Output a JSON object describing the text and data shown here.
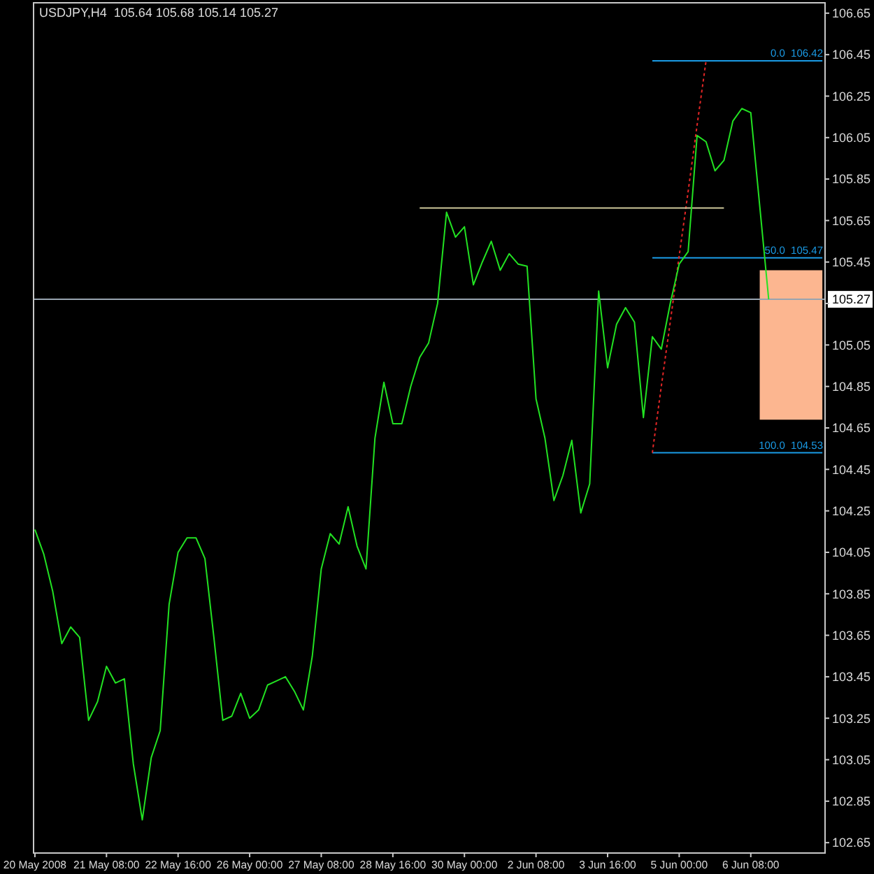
{
  "chart_data": {
    "type": "line",
    "title": "USDJPY,H4  105.64 105.68 105.14 105.27",
    "categories": [
      "20 May 2008",
      null,
      null,
      null,
      null,
      null,
      null,
      null,
      "21 May 08:00",
      null,
      null,
      null,
      null,
      null,
      null,
      null,
      "22 May 16:00",
      null,
      null,
      null,
      null,
      null,
      null,
      null,
      "26 May 00:00",
      null,
      null,
      null,
      null,
      null,
      null,
      null,
      "27 May 08:00",
      null,
      null,
      null,
      null,
      null,
      null,
      null,
      "28 May 16:00",
      null,
      null,
      null,
      null,
      null,
      null,
      null,
      "30 May 00:00",
      null,
      null,
      null,
      null,
      null,
      null,
      null,
      "2 Jun 08:00",
      null,
      null,
      null,
      null,
      null,
      null,
      null,
      "3 Jun 16:00",
      null,
      null,
      null,
      null,
      null,
      null,
      null,
      "5 Jun 00:00",
      null,
      null,
      null,
      null,
      null,
      null,
      null,
      "6 Jun 08:00",
      null,
      null,
      null,
      null,
      null,
      null,
      null,
      null
    ],
    "series": [
      {
        "color": "#22e222",
        "values": [
          104.16,
          104.04,
          103.86,
          103.61,
          103.69,
          103.64,
          103.24,
          103.33,
          103.5,
          103.42,
          103.44,
          103.03,
          102.76,
          103.06,
          103.19,
          103.8,
          104.05,
          104.12,
          104.12,
          104.02,
          103.64,
          103.24,
          103.26,
          103.37,
          103.25,
          103.29,
          103.41,
          103.43,
          103.45,
          103.38,
          103.29,
          103.55,
          103.97,
          104.14,
          104.09,
          104.27,
          104.08,
          103.97,
          104.6,
          104.87,
          104.67,
          104.67,
          104.85,
          104.99,
          105.06,
          105.25,
          105.69,
          105.57,
          105.62,
          105.34,
          105.45,
          105.55,
          105.41,
          105.49,
          105.44,
          105.43,
          104.79,
          104.6,
          104.3,
          104.42,
          104.59,
          104.24,
          104.38,
          105.31,
          104.94,
          105.15,
          105.23,
          105.16,
          104.7,
          105.09,
          105.03,
          105.25,
          105.44,
          105.5,
          106.06,
          106.03,
          105.89,
          105.94,
          106.13,
          106.19,
          106.17,
          105.72,
          105.27,
          null,
          null,
          null,
          null,
          null,
          null
        ]
      },
      {
        "type": "line",
        "color": "#cdc79a",
        "values": [
          null,
          null,
          null,
          null,
          null,
          null,
          null,
          null,
          null,
          null,
          null,
          null,
          null,
          null,
          null,
          null,
          null,
          null,
          null,
          null,
          null,
          null,
          null,
          null,
          null,
          null,
          null,
          null,
          null,
          null,
          null,
          null,
          null,
          null,
          null,
          null,
          null,
          null,
          null,
          null,
          null,
          null,
          null,
          105.71,
          105.71,
          105.71,
          105.71,
          105.71,
          105.71,
          105.71,
          105.71,
          105.71,
          105.71,
          105.71,
          105.71,
          105.71,
          105.71,
          105.71,
          105.71,
          105.71,
          105.71,
          105.71,
          105.71,
          105.71,
          105.71,
          105.71,
          105.71,
          105.71,
          105.71,
          105.71,
          105.71,
          105.71,
          105.71,
          105.71,
          105.71,
          105.71,
          105.71,
          105.71,
          null,
          null,
          null,
          null,
          null,
          null,
          null,
          null,
          null,
          null,
          null
        ]
      },
      {
        "type": "line",
        "color": "#e32626",
        "line_style": "dotted",
        "values": [
          null,
          null,
          null,
          null,
          null,
          null,
          null,
          null,
          null,
          null,
          null,
          null,
          null,
          null,
          null,
          null,
          null,
          null,
          null,
          null,
          null,
          null,
          null,
          null,
          null,
          null,
          null,
          null,
          null,
          null,
          null,
          null,
          null,
          null,
          null,
          null,
          null,
          null,
          null,
          null,
          null,
          null,
          null,
          null,
          null,
          null,
          null,
          null,
          null,
          null,
          null,
          null,
          null,
          null,
          null,
          null,
          null,
          null,
          null,
          null,
          null,
          null,
          null,
          null,
          null,
          null,
          null,
          null,
          null,
          104.53,
          104.85,
          105.16,
          105.48,
          105.79,
          106.11,
          106.42,
          null,
          null,
          null,
          null,
          null,
          null,
          null,
          null,
          null,
          null,
          null,
          null,
          null
        ]
      },
      {
        "type": "line",
        "name": "0.0  106.42",
        "color": "#1a9be6",
        "values": [
          null,
          null,
          null,
          null,
          null,
          null,
          null,
          null,
          null,
          null,
          null,
          null,
          null,
          null,
          null,
          null,
          null,
          null,
          null,
          null,
          null,
          null,
          null,
          null,
          null,
          null,
          null,
          null,
          null,
          null,
          null,
          null,
          null,
          null,
          null,
          null,
          null,
          null,
          null,
          null,
          null,
          null,
          null,
          null,
          null,
          null,
          null,
          null,
          null,
          null,
          null,
          null,
          null,
          null,
          null,
          null,
          null,
          null,
          null,
          null,
          null,
          null,
          null,
          null,
          null,
          null,
          null,
          null,
          null,
          106.42,
          106.42,
          106.42,
          106.42,
          106.42,
          106.42,
          106.42,
          106.42,
          106.42,
          106.42,
          106.42,
          106.42,
          106.42,
          106.42,
          106.42,
          106.42,
          106.42,
          106.42,
          106.42,
          106.42
        ]
      },
      {
        "type": "line",
        "name": "50.0  105.47",
        "color": "#1a9be6",
        "values": [
          null,
          null,
          null,
          null,
          null,
          null,
          null,
          null,
          null,
          null,
          null,
          null,
          null,
          null,
          null,
          null,
          null,
          null,
          null,
          null,
          null,
          null,
          null,
          null,
          null,
          null,
          null,
          null,
          null,
          null,
          null,
          null,
          null,
          null,
          null,
          null,
          null,
          null,
          null,
          null,
          null,
          null,
          null,
          null,
          null,
          null,
          null,
          null,
          null,
          null,
          null,
          null,
          null,
          null,
          null,
          null,
          null,
          null,
          null,
          null,
          null,
          null,
          null,
          null,
          null,
          null,
          null,
          null,
          null,
          105.47,
          105.47,
          105.47,
          105.47,
          105.47,
          105.47,
          105.47,
          105.47,
          105.47,
          105.47,
          105.47,
          105.47,
          105.47,
          105.47,
          105.47,
          105.47,
          105.47,
          105.47,
          105.47,
          105.47
        ]
      },
      {
        "type": "line",
        "name": "100.0  104.53",
        "color": "#1a9be6",
        "values": [
          null,
          null,
          null,
          null,
          null,
          null,
          null,
          null,
          null,
          null,
          null,
          null,
          null,
          null,
          null,
          null,
          null,
          null,
          null,
          null,
          null,
          null,
          null,
          null,
          null,
          null,
          null,
          null,
          null,
          null,
          null,
          null,
          null,
          null,
          null,
          null,
          null,
          null,
          null,
          null,
          null,
          null,
          null,
          null,
          null,
          null,
          null,
          null,
          null,
          null,
          null,
          null,
          null,
          null,
          null,
          null,
          null,
          null,
          null,
          null,
          null,
          null,
          null,
          null,
          null,
          null,
          null,
          null,
          null,
          104.53,
          104.53,
          104.53,
          104.53,
          104.53,
          104.53,
          104.53,
          104.53,
          104.53,
          104.53,
          104.53,
          104.53,
          104.53,
          104.53,
          104.53,
          104.53,
          104.53,
          104.53,
          104.53,
          104.53
        ]
      },
      {
        "type": "line",
        "color": "#fcb690",
        "values": [
          null,
          null,
          null,
          null,
          null,
          null,
          null,
          null,
          null,
          null,
          null,
          null,
          null,
          null,
          null,
          null,
          null,
          null,
          null,
          null,
          null,
          null,
          null,
          null,
          null,
          null,
          null,
          null,
          null,
          null,
          null,
          null,
          null,
          null,
          null,
          null,
          null,
          null,
          null,
          null,
          null,
          null,
          null,
          null,
          null,
          null,
          null,
          null,
          null,
          null,
          null,
          null,
          null,
          null,
          null,
          null,
          null,
          null,
          null,
          null,
          null,
          null,
          null,
          null,
          null,
          null,
          null,
          null,
          null,
          null,
          null,
          null,
          null,
          null,
          null,
          null,
          null,
          null,
          null,
          null,
          null,
          null,
          null,
          null,
          null,
          null,
          null,
          null,
          null
        ],
        "lower": [
          null,
          null,
          null,
          null,
          null,
          null,
          null,
          null,
          null,
          null,
          null,
          null,
          null,
          null,
          null,
          null,
          null,
          null,
          null,
          null,
          null,
          null,
          null,
          null,
          null,
          null,
          null,
          null,
          null,
          null,
          null,
          null,
          null,
          null,
          null,
          null,
          null,
          null,
          null,
          null,
          null,
          null,
          null,
          null,
          null,
          null,
          null,
          null,
          null,
          null,
          null,
          null,
          null,
          null,
          null,
          null,
          null,
          null,
          null,
          null,
          null,
          null,
          null,
          null,
          null,
          null,
          null,
          null,
          null,
          null,
          null,
          null,
          null,
          null,
          null,
          null,
          null,
          null,
          null,
          null,
          null,
          104.69,
          104.69,
          104.69,
          104.69,
          104.69,
          104.69,
          104.69,
          104.69
        ],
        "upper": [
          null,
          null,
          null,
          null,
          null,
          null,
          null,
          null,
          null,
          null,
          null,
          null,
          null,
          null,
          null,
          null,
          null,
          null,
          null,
          null,
          null,
          null,
          null,
          null,
          null,
          null,
          null,
          null,
          null,
          null,
          null,
          null,
          null,
          null,
          null,
          null,
          null,
          null,
          null,
          null,
          null,
          null,
          null,
          null,
          null,
          null,
          null,
          null,
          null,
          null,
          null,
          null,
          null,
          null,
          null,
          null,
          null,
          null,
          null,
          null,
          null,
          null,
          null,
          null,
          null,
          null,
          null,
          null,
          null,
          null,
          null,
          null,
          null,
          null,
          null,
          null,
          null,
          null,
          null,
          null,
          null,
          105.41,
          105.41,
          105.41,
          105.41,
          105.41,
          105.41,
          105.41,
          105.41
        ]
      }
    ],
    "ylim": [
      102.6,
      106.7
    ],
    "yticks": [
      106.65,
      106.45,
      106.25,
      106.05,
      105.85,
      105.65,
      105.45,
      {
        "value": 105.25,
        "label": null
      },
      105.05,
      104.85,
      104.65,
      104.45,
      104.25,
      104.05,
      103.85,
      103.65,
      103.45,
      103.25,
      103.05,
      102.85,
      102.65
    ],
    "ref_lines": [
      {
        "axis": "y",
        "value": 105.27,
        "label": "105.27",
        "color": "#98a4b0"
      }
    ]
  }
}
